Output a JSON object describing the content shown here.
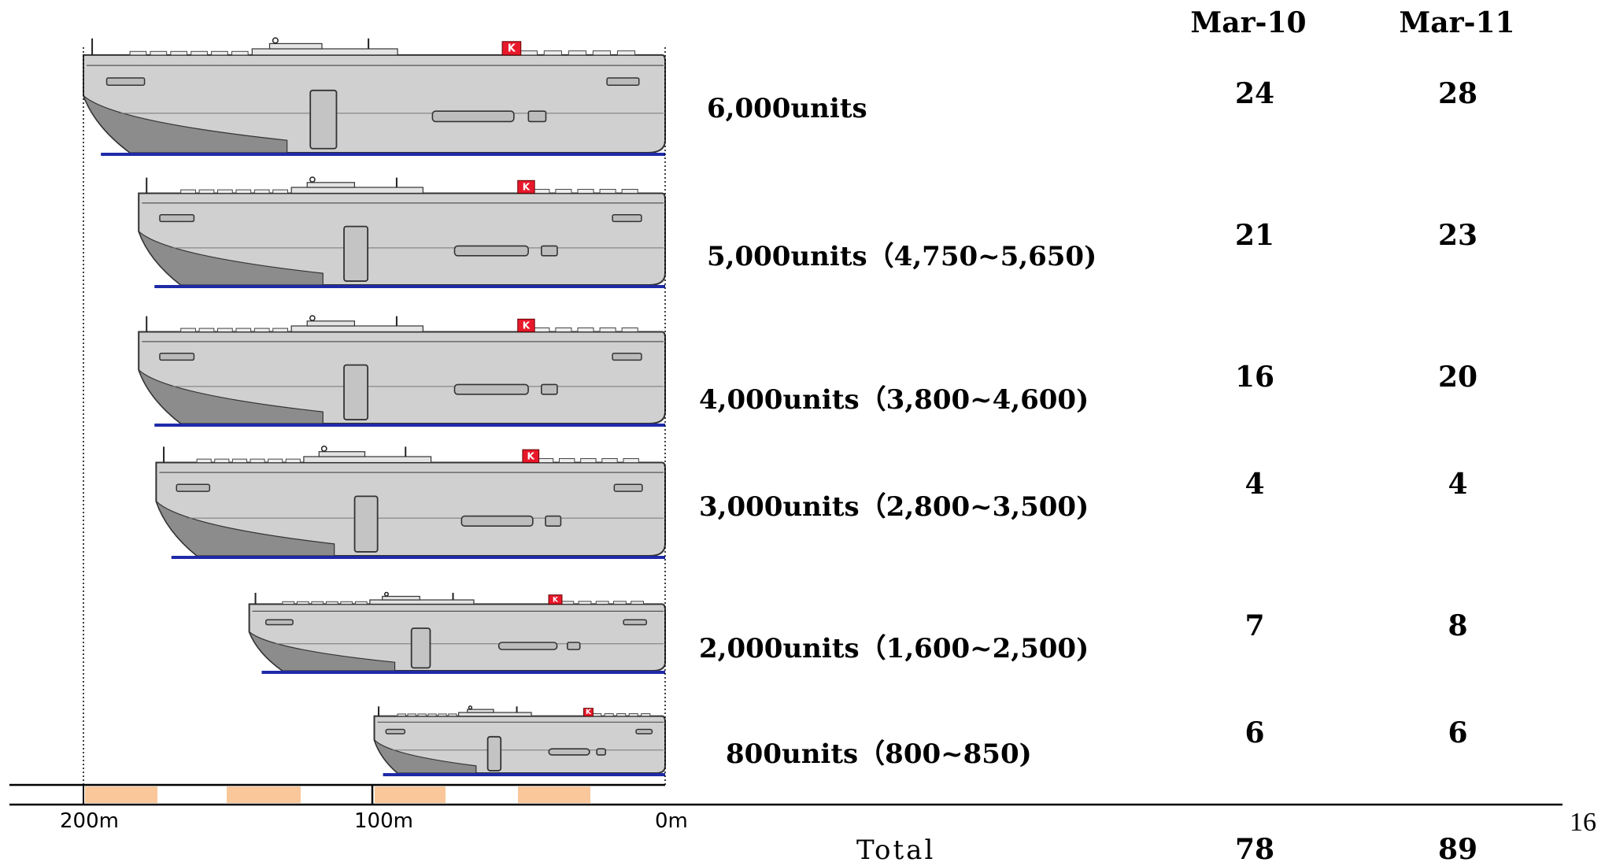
{
  "columns": [
    "Mar-10",
    "Mar-11"
  ],
  "rows": [
    {
      "label": "6,000units",
      "mar10": "24",
      "mar11": "28",
      "length_m": 200
    },
    {
      "label": "5,000units（4,750~5,650)",
      "mar10": "21",
      "mar11": "23",
      "length_m": 181
    },
    {
      "label": "4,000units（3,800~4,600)",
      "mar10": "16",
      "mar11": "20",
      "length_m": 181
    },
    {
      "label": "3,000units（2,800~3,500)",
      "mar10": "4",
      "mar11": "4",
      "length_m": 175
    },
    {
      "label": "2,000units（1,600~2,500)",
      "mar10": "7",
      "mar11": "8",
      "length_m": 143
    },
    {
      "label": "800units（800~850)",
      "mar10": "6",
      "mar11": "6",
      "length_m": 100
    }
  ],
  "scale": {
    "ticks": [
      "200m",
      "100m",
      "0m"
    ]
  },
  "total": {
    "label": "Total",
    "mar10": "78",
    "mar11": "89"
  },
  "page_number": "16",
  "colors": {
    "hull": "#d0d0d0",
    "hull_dark": "#8c8c8c",
    "waterline": "#1f2aa8",
    "funnel": "#e8182b",
    "scale_band": "#f9c79a"
  },
  "logo_letter": "K"
}
